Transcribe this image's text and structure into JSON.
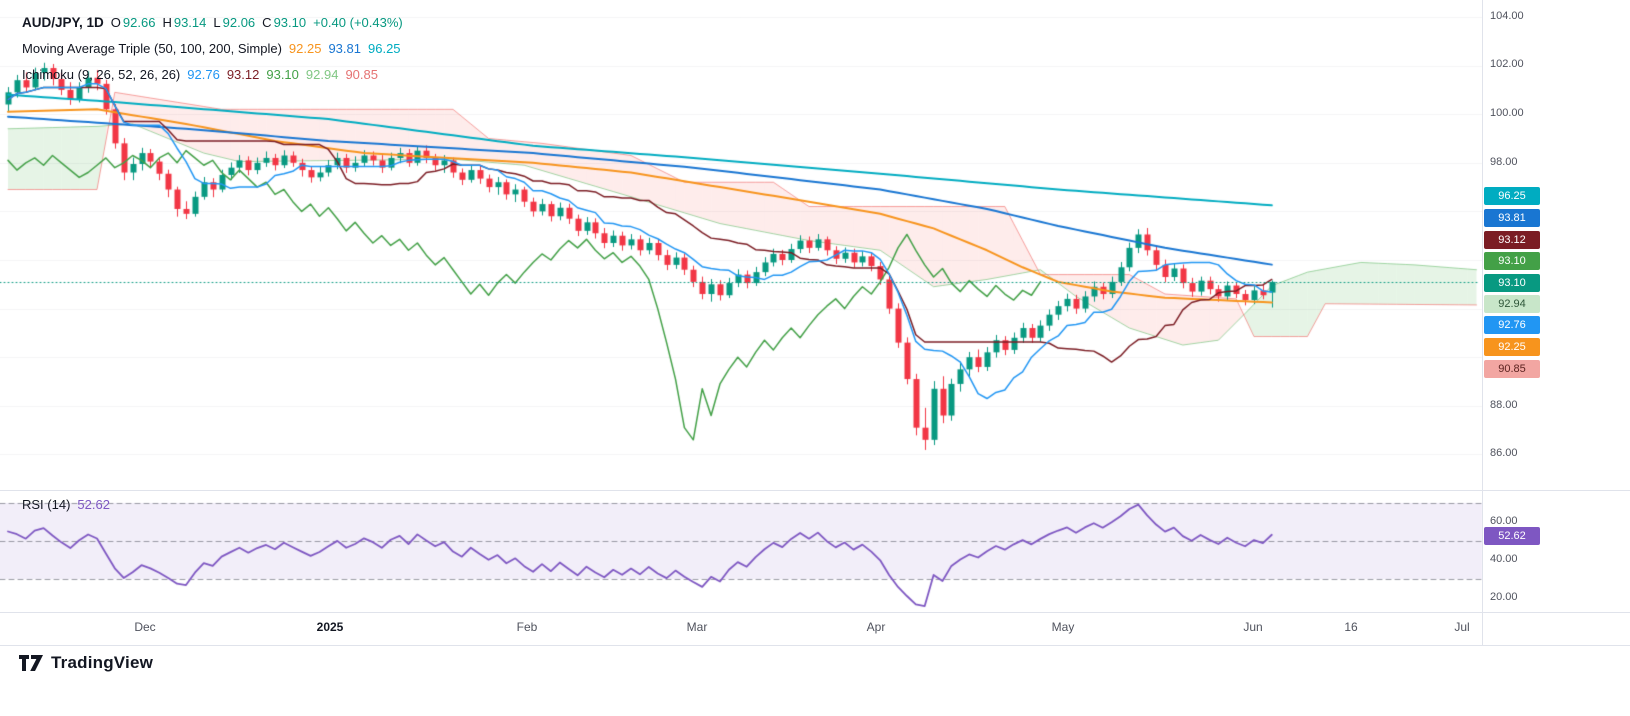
{
  "symbol_row": {
    "title": "AUD/JPY, 1D",
    "open_label": "O",
    "open": "92.66",
    "high_label": "H",
    "high": "93.14",
    "low_label": "L",
    "low": "92.06",
    "close_label": "C",
    "close": "93.10",
    "change": "+0.40 (+0.43%)"
  },
  "ma_row": {
    "label": "Moving Average Triple (50, 100, 200, Simple)",
    "v50": "92.25",
    "v100": "93.81",
    "v200": "96.25"
  },
  "ichimoku_row": {
    "label": "Ichimoku (9, 26, 52, 26, 26)",
    "tenkan": "92.76",
    "kijun": "93.12",
    "chikou": "93.10",
    "senkou_a": "92.94",
    "senkou_b": "90.85"
  },
  "rsi_row": {
    "label": "RSI (14)",
    "value": "52.62"
  },
  "price_axis": {
    "grid_labels": [
      "104.00",
      "102.00",
      "100.00",
      "98.00",
      "88.00",
      "86.00"
    ],
    "badges": {
      "ma200": "96.25",
      "ma100": "93.81",
      "kijun": "93.12",
      "chikou": "93.10",
      "last_price": "93.10",
      "senkou_a": "92.94",
      "tenkan": "92.76",
      "ma50": "92.25",
      "senkou_b": "90.85"
    }
  },
  "rsi_axis": {
    "labels": [
      "60.00",
      "40.00",
      "20.00"
    ],
    "badge": "52.62"
  },
  "time_axis": {
    "labels": [
      "Dec",
      "2025",
      "Feb",
      "Mar",
      "Apr",
      "May",
      "Jun",
      "16",
      "Jul"
    ]
  },
  "branding": {
    "name": "TradingView"
  },
  "chart_data": {
    "type": "candlestick",
    "symbol": "AUD/JPY",
    "interval": "1D",
    "last": {
      "open": 92.66,
      "high": 93.14,
      "low": 92.06,
      "close": 93.1,
      "change": 0.4,
      "change_pct": 0.43
    },
    "y_axis": {
      "min": 86,
      "max": 104,
      "tick_step": 2
    },
    "x_axis_labels": [
      "Dec",
      "2025",
      "Feb",
      "Mar",
      "Apr",
      "May",
      "Jun",
      "16",
      "Jul"
    ],
    "colors": {
      "up": "#089981",
      "down": "#f23645",
      "sma50": "#f7941d",
      "sma100": "#1976d2",
      "sma200": "#00acc1",
      "tenkan": "#2196f3",
      "kijun": "#7b1d24",
      "chikou": "#43a047",
      "senkou_a": "#66bb6a",
      "senkou_b": "#ef5350",
      "cloud_up": "rgba(76,175,80,0.14)",
      "cloud_down": "rgba(244,67,54,0.10)",
      "rsi": "#7e57c2",
      "last_price_line": "#089981"
    },
    "ohlc": [
      [
        100.4,
        101.1,
        100.1,
        100.9
      ],
      [
        100.9,
        101.6,
        100.7,
        101.4
      ],
      [
        101.4,
        101.7,
        100.9,
        101.1
      ],
      [
        101.1,
        101.9,
        101.0,
        101.7
      ],
      [
        101.7,
        102.1,
        101.4,
        101.9
      ],
      [
        101.9,
        102.05,
        101.2,
        101.45
      ],
      [
        101.45,
        101.7,
        100.8,
        101.0
      ],
      [
        101.0,
        101.3,
        100.4,
        100.6
      ],
      [
        100.6,
        101.3,
        100.5,
        101.1
      ],
      [
        101.1,
        101.75,
        100.9,
        101.5
      ],
      [
        101.5,
        101.8,
        101.0,
        101.25
      ],
      [
        101.25,
        101.4,
        100.0,
        100.2
      ],
      [
        100.2,
        100.4,
        98.6,
        98.8
      ],
      [
        98.8,
        99.0,
        97.3,
        97.6
      ],
      [
        97.6,
        98.2,
        97.3,
        97.95
      ],
      [
        97.95,
        98.6,
        97.7,
        98.4
      ],
      [
        98.4,
        98.55,
        97.8,
        98.05
      ],
      [
        98.05,
        98.2,
        97.3,
        97.55
      ],
      [
        97.55,
        97.7,
        96.6,
        96.9
      ],
      [
        96.9,
        97.0,
        95.8,
        96.1
      ],
      [
        96.1,
        96.4,
        95.7,
        95.9
      ],
      [
        95.9,
        96.8,
        95.8,
        96.6
      ],
      [
        96.6,
        97.4,
        96.5,
        97.2
      ],
      [
        97.2,
        97.35,
        96.6,
        96.9
      ],
      [
        96.9,
        97.7,
        96.8,
        97.5
      ],
      [
        97.5,
        98.0,
        97.3,
        97.8
      ],
      [
        97.8,
        98.3,
        97.6,
        98.1
      ],
      [
        98.1,
        98.25,
        97.5,
        97.7
      ],
      [
        97.7,
        98.2,
        97.55,
        98.0
      ],
      [
        98.0,
        98.45,
        97.85,
        98.2
      ],
      [
        98.2,
        98.35,
        97.7,
        97.9
      ],
      [
        97.9,
        98.5,
        97.8,
        98.3
      ],
      [
        98.3,
        98.45,
        97.85,
        98.0
      ],
      [
        98.0,
        98.15,
        97.45,
        97.7
      ],
      [
        97.7,
        97.85,
        97.2,
        97.4
      ],
      [
        97.4,
        97.85,
        97.25,
        97.6
      ],
      [
        97.6,
        98.1,
        97.45,
        97.9
      ],
      [
        97.9,
        98.4,
        97.75,
        98.2
      ],
      [
        98.2,
        98.35,
        97.6,
        97.8
      ],
      [
        97.8,
        98.25,
        97.65,
        98.0
      ],
      [
        98.0,
        98.5,
        97.85,
        98.3
      ],
      [
        98.3,
        98.45,
        97.9,
        98.1
      ],
      [
        98.1,
        98.3,
        97.6,
        97.8
      ],
      [
        97.8,
        98.4,
        97.7,
        98.2
      ],
      [
        98.2,
        98.6,
        98.0,
        98.4
      ],
      [
        98.4,
        98.55,
        97.85,
        98.0
      ],
      [
        98.0,
        98.65,
        97.9,
        98.5
      ],
      [
        98.5,
        98.7,
        98.0,
        98.2
      ],
      [
        98.2,
        98.35,
        97.7,
        97.9
      ],
      [
        97.9,
        98.3,
        97.6,
        98.1
      ],
      [
        98.1,
        98.2,
        97.4,
        97.6
      ],
      [
        97.6,
        97.75,
        97.1,
        97.3
      ],
      [
        97.3,
        97.9,
        97.2,
        97.7
      ],
      [
        97.7,
        97.85,
        97.15,
        97.35
      ],
      [
        97.35,
        97.5,
        96.8,
        97.0
      ],
      [
        97.0,
        97.4,
        96.7,
        97.2
      ],
      [
        97.2,
        97.3,
        96.5,
        96.7
      ],
      [
        96.7,
        97.1,
        96.4,
        96.9
      ],
      [
        96.9,
        97.0,
        96.2,
        96.4
      ],
      [
        96.4,
        96.55,
        95.8,
        96.0
      ],
      [
        96.0,
        96.5,
        95.85,
        96.3
      ],
      [
        96.3,
        96.4,
        95.6,
        95.8
      ],
      [
        95.8,
        96.35,
        95.65,
        96.15
      ],
      [
        96.15,
        96.3,
        95.5,
        95.7
      ],
      [
        95.7,
        95.85,
        95.0,
        95.2
      ],
      [
        95.2,
        95.75,
        95.05,
        95.55
      ],
      [
        95.55,
        95.7,
        94.9,
        95.1
      ],
      [
        95.1,
        95.3,
        94.5,
        94.7
      ],
      [
        94.7,
        95.2,
        94.55,
        95.0
      ],
      [
        95.0,
        95.15,
        94.4,
        94.6
      ],
      [
        94.6,
        95.05,
        94.45,
        94.85
      ],
      [
        94.85,
        95.0,
        94.2,
        94.4
      ],
      [
        94.4,
        94.9,
        94.25,
        94.7
      ],
      [
        94.7,
        94.85,
        94.0,
        94.2
      ],
      [
        94.2,
        94.4,
        93.6,
        93.8
      ],
      [
        93.8,
        94.3,
        93.65,
        94.1
      ],
      [
        94.1,
        94.25,
        93.4,
        93.6
      ],
      [
        93.6,
        93.75,
        92.9,
        93.1
      ],
      [
        93.1,
        93.3,
        92.4,
        92.6
      ],
      [
        92.6,
        93.2,
        92.3,
        93.0
      ],
      [
        93.0,
        93.15,
        92.35,
        92.55
      ],
      [
        92.55,
        93.25,
        92.45,
        93.05
      ],
      [
        93.05,
        93.6,
        92.9,
        93.4
      ],
      [
        93.4,
        93.55,
        92.85,
        93.05
      ],
      [
        93.05,
        93.7,
        92.95,
        93.5
      ],
      [
        93.5,
        94.1,
        93.35,
        93.9
      ],
      [
        93.9,
        94.45,
        93.75,
        94.25
      ],
      [
        94.25,
        94.4,
        93.8,
        94.0
      ],
      [
        94.0,
        94.65,
        93.9,
        94.45
      ],
      [
        94.45,
        95.0,
        94.3,
        94.8
      ],
      [
        94.8,
        94.95,
        94.3,
        94.5
      ],
      [
        94.5,
        95.05,
        94.4,
        94.85
      ],
      [
        94.85,
        94.95,
        94.2,
        94.4
      ],
      [
        94.4,
        94.55,
        93.85,
        94.05
      ],
      [
        94.05,
        94.5,
        93.9,
        94.3
      ],
      [
        94.3,
        94.45,
        93.7,
        93.9
      ],
      [
        93.9,
        94.35,
        93.75,
        94.15
      ],
      [
        94.15,
        94.3,
        93.55,
        93.75
      ],
      [
        93.75,
        93.9,
        93.0,
        93.2
      ],
      [
        93.2,
        93.4,
        91.8,
        92.0
      ],
      [
        92.0,
        92.2,
        90.4,
        90.6
      ],
      [
        90.6,
        90.8,
        88.9,
        89.1
      ],
      [
        89.1,
        89.3,
        86.8,
        87.1
      ],
      [
        87.1,
        87.9,
        86.2,
        86.6
      ],
      [
        86.6,
        89.0,
        86.4,
        88.7
      ],
      [
        88.7,
        89.2,
        87.3,
        87.6
      ],
      [
        87.6,
        89.1,
        87.4,
        88.9
      ],
      [
        88.9,
        89.8,
        88.6,
        89.5
      ],
      [
        89.5,
        90.2,
        89.2,
        90.0
      ],
      [
        90.0,
        90.3,
        89.4,
        89.6
      ],
      [
        89.6,
        90.4,
        89.45,
        90.2
      ],
      [
        90.2,
        90.9,
        90.0,
        90.7
      ],
      [
        90.7,
        90.85,
        90.1,
        90.3
      ],
      [
        90.3,
        91.0,
        90.15,
        90.8
      ],
      [
        90.8,
        91.4,
        90.6,
        91.2
      ],
      [
        91.2,
        91.35,
        90.6,
        90.8
      ],
      [
        90.8,
        91.5,
        90.65,
        91.3
      ],
      [
        91.3,
        91.95,
        91.1,
        91.75
      ],
      [
        91.75,
        92.3,
        91.55,
        92.1
      ],
      [
        92.1,
        92.6,
        91.9,
        92.4
      ],
      [
        92.4,
        92.55,
        91.8,
        92.0
      ],
      [
        92.0,
        92.7,
        91.85,
        92.5
      ],
      [
        92.5,
        93.1,
        92.3,
        92.9
      ],
      [
        92.9,
        93.05,
        92.4,
        92.6
      ],
      [
        92.6,
        93.3,
        92.45,
        93.1
      ],
      [
        93.1,
        93.9,
        92.95,
        93.7
      ],
      [
        93.7,
        94.7,
        93.55,
        94.5
      ],
      [
        94.5,
        95.25,
        94.3,
        95.05
      ],
      [
        95.05,
        95.3,
        94.2,
        94.4
      ],
      [
        94.4,
        94.55,
        93.6,
        93.8
      ],
      [
        93.8,
        94.0,
        93.1,
        93.3
      ],
      [
        93.3,
        93.85,
        93.15,
        93.65
      ],
      [
        93.65,
        93.8,
        92.85,
        93.05
      ],
      [
        93.05,
        93.25,
        92.5,
        92.7
      ],
      [
        92.7,
        93.3,
        92.55,
        93.15
      ],
      [
        93.15,
        93.3,
        92.6,
        92.8
      ],
      [
        92.8,
        92.95,
        92.3,
        92.5
      ],
      [
        92.5,
        93.1,
        92.35,
        92.95
      ],
      [
        92.95,
        93.05,
        92.45,
        92.6
      ],
      [
        92.6,
        92.75,
        92.15,
        92.35
      ],
      [
        92.35,
        92.9,
        92.2,
        92.75
      ],
      [
        92.75,
        93.0,
        92.4,
        92.55
      ],
      [
        92.66,
        93.14,
        92.06,
        93.1
      ]
    ],
    "indicators": {
      "sma": [
        {
          "period": 50,
          "color": "#f7941d",
          "last": 92.25,
          "points": [
            [
              0,
              100.1
            ],
            [
              10,
              100.2
            ],
            [
              20,
              99.6
            ],
            [
              30,
              98.9
            ],
            [
              40,
              98.4
            ],
            [
              59,
              98.0
            ],
            [
              70,
              97.6
            ],
            [
              80,
              97.0
            ],
            [
              90,
              96.4
            ],
            [
              98,
              95.9
            ],
            [
              104,
              95.3
            ],
            [
              110,
              94.4
            ],
            [
              114,
              93.7
            ],
            [
              118,
              93.1
            ],
            [
              124,
              92.7
            ],
            [
              130,
              92.45
            ],
            [
              142,
              92.25
            ]
          ]
        },
        {
          "period": 100,
          "color": "#1976d2",
          "last": 93.81,
          "points": [
            [
              0,
              99.9
            ],
            [
              20,
              99.4
            ],
            [
              36,
              98.9
            ],
            [
              59,
              98.4
            ],
            [
              77,
              97.8
            ],
            [
              98,
              96.9
            ],
            [
              110,
              96.1
            ],
            [
              118,
              95.4
            ],
            [
              130,
              94.5
            ],
            [
              142,
              93.81
            ]
          ]
        },
        {
          "period": 200,
          "color": "#00acc1",
          "last": 96.25,
          "points": [
            [
              0,
              100.8
            ],
            [
              12,
              100.5
            ],
            [
              36,
              99.8
            ],
            [
              59,
              98.7
            ],
            [
              77,
              98.2
            ],
            [
              98,
              97.55
            ],
            [
              118,
              96.9
            ],
            [
              142,
              96.25
            ]
          ]
        }
      ],
      "ichimoku": {
        "params": [
          9,
          26,
          52,
          26,
          26
        ],
        "tenkan": 92.76,
        "kijun": 93.12,
        "chikou": 93.1,
        "senkou_a": 92.94,
        "senkou_b": 90.85,
        "senkou_a_points": [
          [
            0,
            99.4
          ],
          [
            10,
            99.5
          ],
          [
            14,
            99.6
          ],
          [
            22,
            98.4
          ],
          [
            26,
            98.05
          ],
          [
            50,
            98.15
          ],
          [
            58,
            97.9
          ],
          [
            70,
            96.6
          ],
          [
            80,
            95.5
          ],
          [
            90,
            94.8
          ],
          [
            98,
            94.4
          ],
          [
            104,
            92.9
          ],
          [
            110,
            93.2
          ],
          [
            116,
            93.6
          ],
          [
            120,
            92.5
          ],
          [
            126,
            91.2
          ],
          [
            132,
            90.5
          ],
          [
            136,
            90.7
          ],
          [
            139,
            91.8
          ],
          [
            142,
            92.94
          ],
          [
            146,
            93.5
          ],
          [
            152,
            93.9
          ],
          [
            158,
            93.8
          ],
          [
            165,
            93.6
          ]
        ],
        "senkou_b_points": [
          [
            0,
            96.9
          ],
          [
            10,
            96.9
          ],
          [
            12,
            100.9
          ],
          [
            24,
            100.2
          ],
          [
            50,
            100.2
          ],
          [
            54,
            99.0
          ],
          [
            60,
            98.8
          ],
          [
            70,
            98.3
          ],
          [
            76,
            97.2
          ],
          [
            86,
            97.2
          ],
          [
            90,
            96.2
          ],
          [
            112,
            96.2
          ],
          [
            116,
            93.4
          ],
          [
            126,
            93.4
          ],
          [
            130,
            92.6
          ],
          [
            138,
            92.4
          ],
          [
            140,
            90.85
          ],
          [
            146,
            90.85
          ],
          [
            148,
            92.2
          ],
          [
            165,
            92.15
          ]
        ]
      },
      "rsi": {
        "period": 14,
        "value": 52.62,
        "levels": [
          70,
          50,
          30
        ],
        "range_labels": [
          60,
          40,
          20
        ]
      }
    }
  }
}
